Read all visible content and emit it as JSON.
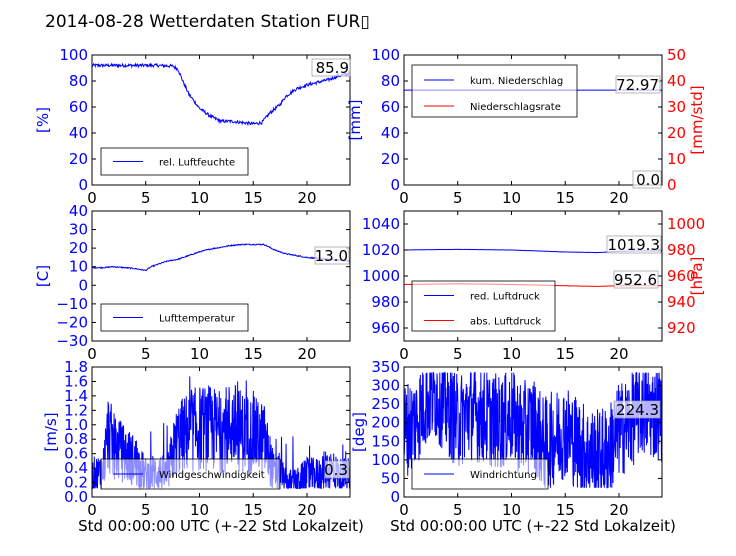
{
  "page": {
    "title": "2014-08-28 Wetterdaten Station FUR▯"
  },
  "colors": {
    "primary": "#0000ff",
    "secondary": "#ff0000",
    "axis": "#000000"
  },
  "chart_data": [
    {
      "id": "humidity",
      "type": "line",
      "xlim": [
        0,
        24
      ],
      "ylim": [
        0,
        100
      ],
      "xticks": [
        0,
        5,
        10,
        15,
        20
      ],
      "yticks": [
        0,
        20,
        40,
        60,
        80,
        100
      ],
      "ylabel": "[%]",
      "xlabel": "",
      "legend": [
        "rel. Luftfeuchte"
      ],
      "legend_position": "lower-left",
      "annotation": "85.9",
      "series": [
        {
          "name": "rel. Luftfeuchte",
          "axis": "left",
          "noise": 1.2,
          "x": [
            0,
            2,
            4,
            6,
            7.5,
            8,
            8.5,
            9,
            10,
            11,
            12,
            13,
            14,
            15,
            15.8,
            16.5,
            17.5,
            18,
            19,
            20,
            21,
            22,
            23,
            24
          ],
          "y": [
            92,
            92,
            92,
            92,
            91.5,
            89,
            79,
            70,
            59,
            53,
            49,
            49,
            48,
            47,
            48,
            55,
            62,
            68,
            74,
            77,
            79,
            81,
            84,
            86
          ]
        }
      ]
    },
    {
      "id": "precipitation",
      "type": "line",
      "xlim": [
        0,
        24
      ],
      "ylim": [
        0,
        100
      ],
      "y2lim": [
        0,
        50
      ],
      "xticks": [
        0,
        5,
        10,
        15,
        20
      ],
      "yticks": [
        0,
        20,
        40,
        60,
        80,
        100
      ],
      "y2ticks": [
        0,
        10,
        20,
        30,
        40,
        50
      ],
      "ylabel": "[mm]",
      "y2label": "[mm/std]",
      "xlabel": "",
      "legend": [
        "kum. Niederschlag",
        "Niederschlagsrate"
      ],
      "legend_position": "upper-left",
      "annotation": "72.97",
      "annotation2": "0.0",
      "series": [
        {
          "name": "kum. Niederschlag",
          "axis": "left",
          "noise": 0,
          "x": [
            0,
            24
          ],
          "y": [
            72.97,
            72.97
          ]
        },
        {
          "name": "Niederschlagsrate",
          "axis": "right",
          "noise": 0,
          "x": [
            0,
            24
          ],
          "y": [
            0,
            0
          ]
        }
      ]
    },
    {
      "id": "temperature",
      "type": "line",
      "xlim": [
        0,
        24
      ],
      "ylim": [
        -30,
        40
      ],
      "xticks": [
        0,
        5,
        10,
        15,
        20
      ],
      "yticks": [
        -30,
        -20,
        -10,
        0,
        10,
        20,
        30,
        40
      ],
      "ylabel": "[C]",
      "xlabel": "",
      "legend": [
        "Lufttemperatur"
      ],
      "legend_position": "lower-left",
      "annotation": "13.0",
      "series": [
        {
          "name": "Lufttemperatur",
          "axis": "left",
          "noise": 0.3,
          "x": [
            0,
            1,
            2,
            3,
            4,
            5,
            5.5,
            6,
            7,
            8,
            9,
            10,
            11,
            12,
            13,
            14,
            15,
            16,
            17,
            18,
            19,
            20,
            21,
            22,
            23,
            24
          ],
          "y": [
            9.5,
            9.5,
            10,
            9.5,
            9,
            8,
            10,
            11,
            13,
            14,
            16,
            18,
            19.5,
            20.5,
            21.5,
            22,
            22,
            22,
            19,
            17,
            16,
            15,
            14.5,
            14,
            13.5,
            13.0
          ]
        }
      ]
    },
    {
      "id": "pressure",
      "type": "line",
      "xlim": [
        0,
        24
      ],
      "ylim": [
        950,
        1050
      ],
      "y2lim": [
        910,
        1010
      ],
      "xticks": [
        0,
        5,
        10,
        15,
        20
      ],
      "yticks": [
        960,
        980,
        1000,
        1020,
        1040
      ],
      "y2ticks": [
        920,
        940,
        960,
        980,
        1000
      ],
      "ylabel": "",
      "y2label": "[hPa]",
      "xlabel": "",
      "legend": [
        "red. Luftdruck",
        "abs. Luftdruck"
      ],
      "legend_position": "lower-left",
      "annotation": "1019.3",
      "annotation2": "952.6",
      "series": [
        {
          "name": "red. Luftdruck",
          "axis": "left",
          "noise": 0.1,
          "x": [
            0,
            5,
            10,
            15,
            18,
            20,
            22,
            24
          ],
          "y": [
            1020,
            1020.5,
            1020,
            1018.5,
            1018,
            1019,
            1019.3,
            1019.3
          ]
        },
        {
          "name": "abs. Luftdruck",
          "axis": "right",
          "noise": 0.1,
          "x": [
            0,
            5,
            10,
            15,
            18,
            20,
            22,
            24
          ],
          "y": [
            953.5,
            954,
            953.5,
            952.5,
            952,
            952.5,
            952.6,
            952.6
          ]
        }
      ]
    },
    {
      "id": "windspeed",
      "type": "line",
      "xlim": [
        0,
        24
      ],
      "ylim": [
        0,
        1.8
      ],
      "xticks": [
        0,
        5,
        10,
        15,
        20
      ],
      "yticks": [
        0,
        0.2,
        0.4,
        0.6,
        0.8,
        1.0,
        1.2,
        1.4,
        1.6,
        1.8
      ],
      "ylabel": "[m/s]",
      "xlabel": "Std 00:00:00 UTC (+-22 Std Lokalzeit)",
      "legend": [
        "Windgeschwindigkeit"
      ],
      "legend_position": "lower-center",
      "annotation": "0.3",
      "series": [
        {
          "name": "Windgeschwindigkeit",
          "axis": "left",
          "jitter": "speed",
          "x": [
            0,
            1,
            1.5,
            2,
            3,
            4,
            5,
            6,
            7,
            7.5,
            8,
            9,
            10,
            11,
            12,
            13,
            14,
            15,
            16,
            17,
            17.5,
            18,
            19,
            20,
            21,
            22,
            23,
            24
          ],
          "y": [
            0.3,
            0.35,
            0.9,
            0.7,
            0.6,
            0.5,
            0.3,
            0.35,
            0.3,
            0.6,
            0.8,
            0.9,
            0.95,
            0.95,
            0.9,
            1.0,
            0.9,
            0.85,
            0.8,
            0.3,
            0.35,
            0.2,
            0.2,
            0.3,
            0.3,
            0.4,
            0.3,
            0.3
          ]
        }
      ]
    },
    {
      "id": "winddirection",
      "type": "line",
      "xlim": [
        0,
        24
      ],
      "ylim": [
        0,
        350
      ],
      "xticks": [
        0,
        5,
        10,
        15,
        20
      ],
      "yticks": [
        0,
        50,
        100,
        150,
        200,
        250,
        300,
        350
      ],
      "ylabel": "[deg]",
      "xlabel": "Std 00:00:00 UTC (+-22 Std Lokalzeit)",
      "legend": [
        "Windrichtung"
      ],
      "legend_position": "lower-left",
      "annotation": "224.3",
      "series": [
        {
          "name": "Windrichtung",
          "axis": "left",
          "jitter": "dir",
          "x": [
            0,
            1,
            2,
            3,
            4,
            5,
            6,
            7,
            8,
            9,
            10,
            11,
            12,
            13,
            14,
            15,
            16,
            17,
            18,
            19,
            20,
            21,
            22,
            23,
            24
          ],
          "y": [
            180,
            200,
            260,
            280,
            240,
            200,
            230,
            220,
            210,
            200,
            220,
            180,
            200,
            140,
            160,
            180,
            150,
            120,
            110,
            120,
            180,
            200,
            240,
            230,
            224.3
          ]
        }
      ]
    }
  ]
}
